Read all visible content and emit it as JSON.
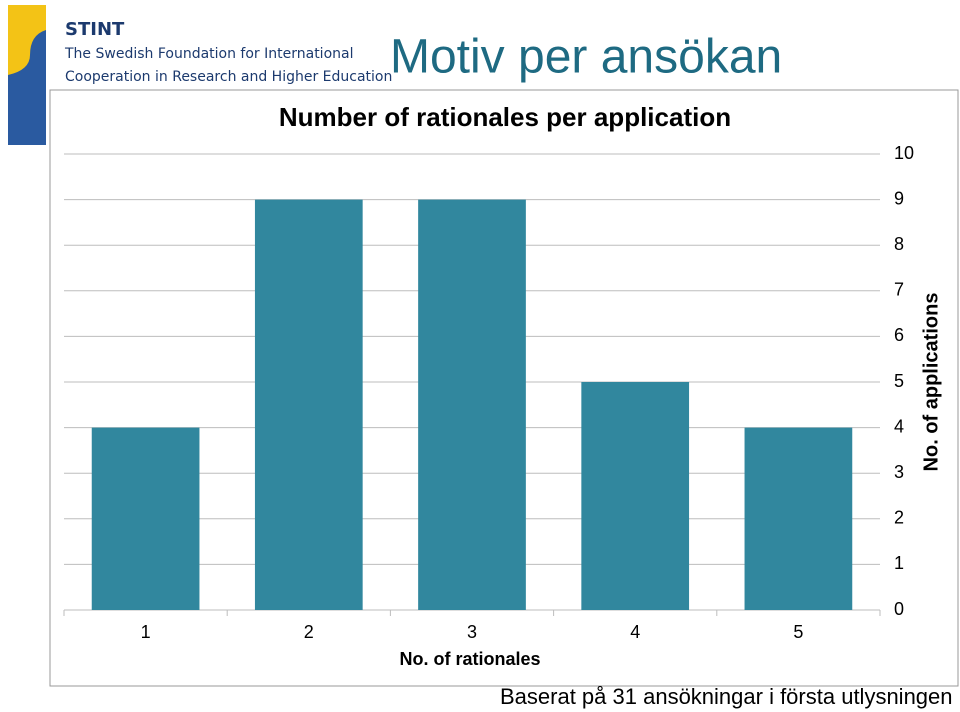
{
  "slide": {
    "logo_name": "STINT",
    "logo_line1": "The Swedish Foundation for International",
    "logo_line2": "Cooperation in Research and Higher Education",
    "title": "Motiv per ansökan",
    "footer": "Baserat på 31 ansökningar i första utlysningen"
  },
  "chart_data": {
    "type": "bar",
    "title": "Number of rationales per application",
    "categories": [
      "1",
      "2",
      "3",
      "4",
      "5"
    ],
    "values": [
      4,
      9,
      9,
      5,
      4
    ],
    "color": "#31879e",
    "xlabel": "No. of rationales",
    "ylabel": "No. of applications",
    "y_axis_side": "right",
    "ylim": [
      0,
      10
    ],
    "yticks": [
      0,
      1,
      2,
      3,
      4,
      5,
      6,
      7,
      8,
      9,
      10
    ],
    "grid": true
  }
}
